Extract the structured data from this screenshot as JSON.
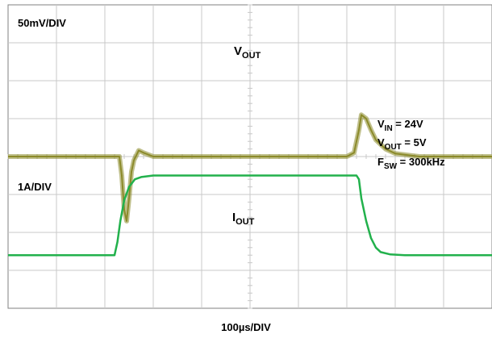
{
  "chart_data": {
    "type": "line",
    "xlabel": "100µs/DIV",
    "grid": true,
    "x_unit": "µs",
    "xlim": [
      0,
      1000
    ],
    "colors": {
      "vout": "#8b8a2a",
      "iout": "#22b14c",
      "grid": "#c8c8c8",
      "frame": "#808080"
    },
    "channels": {
      "vout": {
        "name_main": "V",
        "name_sub": "OUT",
        "scale_label": "50mV/DIV",
        "unit": "mV",
        "volts_per_div": 50,
        "baseline_div": 4.0,
        "ylim": [
          -200,
          200
        ],
        "x": [
          0,
          230,
          235,
          240,
          245,
          250,
          255,
          260,
          270,
          280,
          300,
          400,
          700,
          715,
          725,
          730,
          740,
          750,
          760,
          780,
          800,
          850,
          1000
        ],
        "values": [
          0,
          0,
          -25,
          -70,
          -85,
          -55,
          -20,
          -5,
          8,
          5,
          0,
          0,
          0,
          5,
          35,
          55,
          50,
          35,
          22,
          10,
          4,
          0,
          0
        ]
      },
      "iout": {
        "name_main": "I",
        "name_sub": "OUT",
        "scale_label": "1A/DIV",
        "unit": "A",
        "amps_per_div": 1,
        "baseline_div": 1.4,
        "ylim": [
          0,
          4
        ],
        "x": [
          0,
          220,
          226,
          232,
          240,
          250,
          262,
          275,
          300,
          500,
          720,
          725,
          730,
          740,
          750,
          760,
          770,
          790,
          820,
          1000
        ],
        "values": [
          0,
          0,
          0.35,
          0.9,
          1.45,
          1.8,
          2.0,
          2.06,
          2.1,
          2.1,
          2.1,
          2.0,
          1.5,
          0.9,
          0.45,
          0.2,
          0.08,
          0.02,
          0,
          0
        ]
      }
    },
    "conditions": [
      {
        "main": "V",
        "sub": "IN",
        "rest": " = 24V"
      },
      {
        "main": "V",
        "sub": "OUT",
        "rest": " = 5V"
      },
      {
        "main": "F",
        "sub": "SW",
        "rest": " = 300kHz"
      }
    ]
  }
}
